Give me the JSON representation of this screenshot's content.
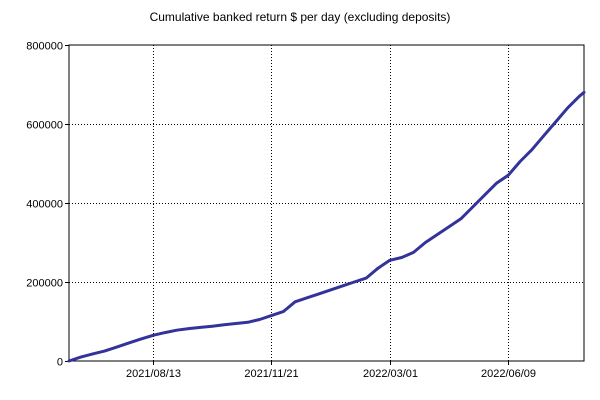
{
  "chart_data": {
    "type": "line",
    "title": "Cumulative banked return $ per day (excluding deposits)",
    "xlabel": "",
    "ylabel": "",
    "x_start": "2021-06-03",
    "x_end": "2022-08-12",
    "x_ticks": [
      "2021/08/13",
      "2021/11/21",
      "2022/03/01",
      "2022/06/09"
    ],
    "x_tick_dates": [
      "2021-08-13",
      "2021-11-21",
      "2022-03-01",
      "2022-06-09"
    ],
    "ylim": [
      0,
      800000
    ],
    "y_ticks": [
      0,
      200000,
      400000,
      600000,
      800000
    ],
    "y_tick_labels": [
      "0",
      "200000",
      "400000",
      "600000",
      "800000"
    ],
    "grid": true,
    "series": [
      {
        "color": "#333399",
        "x": [
          "2021-06-03",
          "2021-06-13",
          "2021-06-23",
          "2021-07-03",
          "2021-07-13",
          "2021-07-23",
          "2021-08-02",
          "2021-08-13",
          "2021-08-23",
          "2021-09-02",
          "2021-09-12",
          "2021-09-22",
          "2021-10-02",
          "2021-10-12",
          "2021-10-22",
          "2021-11-01",
          "2021-11-11",
          "2021-11-21",
          "2021-12-01",
          "2021-12-11",
          "2021-12-21",
          "2021-12-31",
          "2022-01-10",
          "2022-01-20",
          "2022-01-30",
          "2022-02-09",
          "2022-02-19",
          "2022-03-01",
          "2022-03-11",
          "2022-03-21",
          "2022-03-31",
          "2022-04-10",
          "2022-04-20",
          "2022-04-30",
          "2022-05-10",
          "2022-05-20",
          "2022-05-30",
          "2022-06-09",
          "2022-06-19",
          "2022-06-29",
          "2022-07-09",
          "2022-07-19",
          "2022-07-29",
          "2022-08-08",
          "2022-08-12"
        ],
        "values": [
          0,
          10000,
          18000,
          25000,
          35000,
          45000,
          55000,
          65000,
          72000,
          78000,
          82000,
          85000,
          88000,
          92000,
          95000,
          98000,
          105000,
          115000,
          125000,
          150000,
          160000,
          170000,
          180000,
          190000,
          200000,
          210000,
          235000,
          255000,
          262000,
          275000,
          300000,
          320000,
          340000,
          360000,
          390000,
          420000,
          450000,
          470000,
          505000,
          535000,
          570000,
          605000,
          640000,
          670000,
          680000
        ]
      }
    ]
  }
}
